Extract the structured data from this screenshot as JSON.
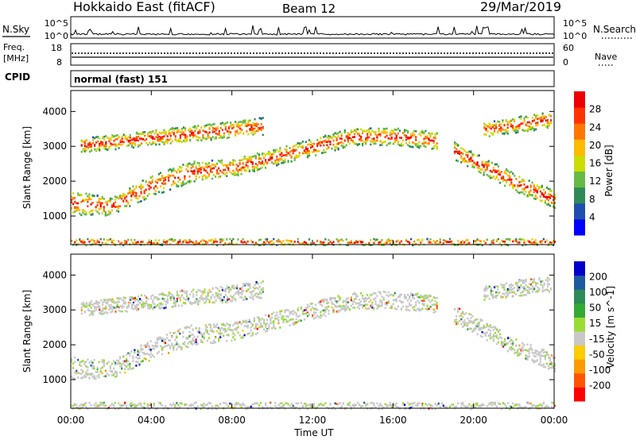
{
  "header": {
    "station": "Hokkaido East (fitACF)",
    "beam": "Beam 12",
    "date": "29/Mar/2019"
  },
  "noise_panel": {
    "left_label": "N.Sky",
    "right_label": "N.Search",
    "left_ticks": [
      "10^5",
      "10^0"
    ],
    "right_ticks": [
      "10^5",
      "10^0"
    ]
  },
  "freq_panel": {
    "left_label_line1": "Freq.",
    "left_label_line2": "[MHz]",
    "right_label": "Nave",
    "left_ticks": [
      "18",
      "8"
    ],
    "right_ticks": [
      "60",
      "0"
    ]
  },
  "cpid_panel": {
    "label": "CPID",
    "mode_text": "normal (fast) 151"
  },
  "x_axis": {
    "label": "Time UT",
    "tick_labels": [
      "00:00",
      "04:00",
      "08:00",
      "12:00",
      "16:00",
      "20:00",
      "00:00"
    ]
  },
  "y_axis": {
    "label": "Slant Range [km]",
    "tick_labels": [
      "1000",
      "2000",
      "3000",
      "4000"
    ]
  },
  "power_colorbar": {
    "label": "Power [dB]",
    "tick_labels": [
      "28",
      "24",
      "20",
      "16",
      "12",
      "8",
      "4"
    ],
    "colors": [
      "#0000ff",
      "#1e4fb0",
      "#2e8b57",
      "#66bb44",
      "#ccdd00",
      "#ffbb00",
      "#ff7700",
      "#ff3300",
      "#ee0000"
    ]
  },
  "velocity_colorbar": {
    "label": "Velocity [m s^-1]",
    "tick_labels": [
      "200",
      "100",
      "50",
      "15",
      "-15",
      "-50",
      "-100",
      "-200"
    ],
    "colors": [
      "#ff0000",
      "#ff5500",
      "#ff9900",
      "#ffcc00",
      "#c8c8c8",
      "#99dd33",
      "#33aa33",
      "#2e8b57",
      "#1e5aa0",
      "#0000cc"
    ]
  },
  "chart_data": {
    "type": "heatmap",
    "x_unit": "hours UT",
    "xlim": [
      0,
      24
    ],
    "ylim": [
      180,
      4600
    ],
    "y_unit": "km",
    "scatter_regions": [
      {
        "name": "main band",
        "x0": 0,
        "x1": 24,
        "center_km": [
          1400,
          1300,
          1900,
          2300,
          2400,
          2700,
          3000,
          3300,
          3300,
          3200,
          2600,
          2000,
          1500
        ],
        "width_km": [
          700,
          500,
          600,
          600,
          500,
          500,
          500,
          500,
          500,
          500,
          500,
          500,
          500
        ],
        "gap_from": 18.2,
        "gap_to": 19.0
      },
      {
        "name": "upper scatter",
        "x0": 0.5,
        "x1": 9.5,
        "center_km": [
          3050,
          3600
        ],
        "width_km": [
          400,
          500
        ]
      },
      {
        "name": "near range",
        "x0": 0,
        "x1": 24,
        "center_km": [
          280,
          280
        ],
        "width_km": [
          180,
          180
        ]
      },
      {
        "name": "evening high",
        "x0": 20.5,
        "x1": 23.8,
        "center_km": [
          3500,
          3800
        ],
        "width_km": [
          400,
          500
        ]
      }
    ],
    "power_range_db": [
      0,
      30
    ],
    "velocity_range": [
      -250,
      250
    ]
  }
}
